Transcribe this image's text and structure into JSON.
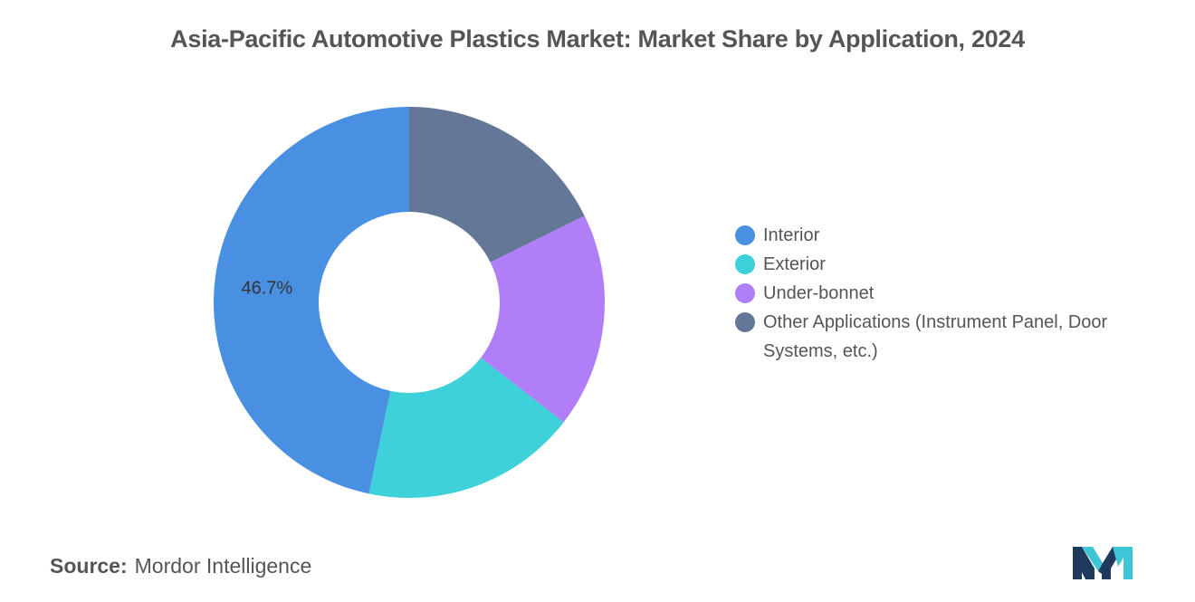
{
  "chart_data": {
    "type": "pie",
    "donut": true,
    "title": "Asia-Pacific Automotive Plastics Market: Market Share by Application, 2024",
    "slices": [
      {
        "name": "Interior",
        "value": 46.7,
        "color": "#4a90e2",
        "label": "46.7%"
      },
      {
        "name": "Exterior",
        "value": 17.8,
        "color": "#3ed1d9",
        "label": ""
      },
      {
        "name": "Under-bonnet",
        "value": 17.8,
        "color": "#b07ff7",
        "label": ""
      },
      {
        "name": "Other Applications (Instrument Panel, Door Systems, etc.)",
        "value": 17.7,
        "color": "#647796",
        "label": ""
      }
    ],
    "legend_placement": "right"
  },
  "source": {
    "label": "Source:",
    "value": "Mordor Intelligence"
  },
  "logo": {
    "icon": "mordor-intelligence-logo-icon",
    "colors": [
      "#1f3a5c",
      "#3ec6d8"
    ]
  }
}
